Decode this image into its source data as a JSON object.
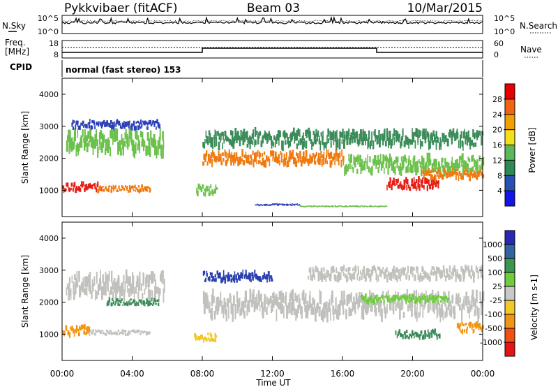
{
  "header": {
    "station": "Pykkvibaer (fitACF)",
    "beam": "Beam 03",
    "date": "10/Mar/2015"
  },
  "params": {
    "nsky_label": "N.Sky",
    "nsky_ticks": [
      "10^5",
      "10^0"
    ],
    "nsearch_label": "N.Search",
    "nsearch_ticks": [
      "10^5",
      "10^0"
    ],
    "freq_label_1": "Freq.",
    "freq_label_2": "[MHz]",
    "freq_ticks": [
      "18",
      "8"
    ],
    "nave_label": "Nave",
    "nave_ticks": [
      "60",
      "0"
    ],
    "cpid_label": "CPID",
    "cpid_text": "normal (fast stereo) 153"
  },
  "chart_data": [
    {
      "type": "heatmap",
      "panel": "power",
      "ylabel": "Slant Range [km]",
      "ylim": [
        180,
        4500
      ],
      "yticks": [
        "1000",
        "2000",
        "3000",
        "4000"
      ],
      "colorbar_label": "Power [dB]",
      "colorbar_ticks": [
        "4",
        "8",
        "12",
        "16",
        "20",
        "24",
        "28"
      ],
      "colorbar_colors": [
        "#1414e6",
        "#2850b4",
        "#2e8a52",
        "#5cb85c",
        "#f2e01a",
        "#f0a000",
        "#f06414",
        "#e60000"
      ],
      "colors": {
        "weak": "#2a3fb8",
        "mid_low": "#3c8c5a",
        "mid": "#6cc04c",
        "strong": "#f0b400",
        "stronger": "#f07a10",
        "max": "#e61e14"
      },
      "bands": [
        {
          "start": 0.2,
          "end": 5.8,
          "center_km": 2500,
          "width_km": 700,
          "level": "mid"
        },
        {
          "start": 0.0,
          "end": 2.2,
          "center_km": 1100,
          "width_km": 250,
          "level": "max"
        },
        {
          "start": 2.0,
          "end": 5.0,
          "center_km": 1050,
          "width_km": 200,
          "level": "stronger"
        },
        {
          "start": 8.0,
          "end": 16.0,
          "center_km": 2000,
          "width_km": 400,
          "level": "stronger"
        },
        {
          "start": 8.0,
          "end": 24.0,
          "center_km": 2600,
          "width_km": 500,
          "level": "mid_low"
        },
        {
          "start": 16.0,
          "end": 24.0,
          "center_km": 1800,
          "width_km": 500,
          "level": "mid"
        },
        {
          "start": 18.5,
          "end": 21.5,
          "center_km": 1200,
          "width_km": 350,
          "level": "max"
        },
        {
          "start": 20.5,
          "end": 24.0,
          "center_km": 1500,
          "width_km": 300,
          "level": "stronger"
        },
        {
          "start": 0.5,
          "end": 5.5,
          "center_km": 3050,
          "width_km": 250,
          "level": "weak"
        },
        {
          "start": 11.0,
          "end": 13.5,
          "center_km": 550,
          "width_km": 60,
          "level": "weak"
        },
        {
          "start": 13.5,
          "end": 18.5,
          "center_km": 500,
          "width_km": 40,
          "level": "mid"
        },
        {
          "start": 7.6,
          "end": 8.8,
          "center_km": 1000,
          "width_km": 300,
          "level": "mid"
        }
      ]
    },
    {
      "type": "heatmap",
      "panel": "velocity",
      "ylabel": "Slant Range [km]",
      "xlabel": "Time UT",
      "ylim": [
        180,
        4500
      ],
      "yticks": [
        "1000",
        "2000",
        "3000",
        "4000"
      ],
      "xlim": [
        0,
        24
      ],
      "xticks": [
        "00:00",
        "04:00",
        "08:00",
        "12:00",
        "16:00",
        "20:00",
        "00:00"
      ],
      "colorbar_label": "Velocity [m s-1]",
      "colorbar_ticks": [
        "1000",
        "500",
        "100",
        "25",
        "-25",
        "-100",
        "-500",
        "-1000"
      ],
      "colorbar_colors": [
        "#2828b4",
        "#3264a0",
        "#3c9650",
        "#6ecd3c",
        "#c8c8c8",
        "#f0c828",
        "#f09614",
        "#f05014",
        "#e61414"
      ],
      "colors": {
        "neg_high": "#2a3fb0",
        "neg_mid": "#3c8c5a",
        "neg_low": "#6ecd3c",
        "zero": "#c0c0bc",
        "pos_low": "#f0c828",
        "pos_mid": "#f09614",
        "pos_high": "#e61e14"
      },
      "bands": [
        {
          "start": 0.2,
          "end": 5.8,
          "center_km": 2500,
          "width_km": 700,
          "level": "zero"
        },
        {
          "start": 0.0,
          "end": 1.5,
          "center_km": 1100,
          "width_km": 300,
          "level": "pos_mid"
        },
        {
          "start": 1.5,
          "end": 5.0,
          "center_km": 1050,
          "width_km": 150,
          "level": "zero"
        },
        {
          "start": 2.5,
          "end": 5.5,
          "center_km": 2000,
          "width_km": 200,
          "level": "neg_mid"
        },
        {
          "start": 7.5,
          "end": 8.8,
          "center_km": 900,
          "width_km": 250,
          "level": "pos_low"
        },
        {
          "start": 8.0,
          "end": 12.0,
          "center_km": 2800,
          "width_km": 300,
          "level": "neg_high"
        },
        {
          "start": 8.0,
          "end": 24.0,
          "center_km": 1900,
          "width_km": 700,
          "level": "zero"
        },
        {
          "start": 14.0,
          "end": 24.0,
          "center_km": 2900,
          "width_km": 400,
          "level": "zero"
        },
        {
          "start": 17.0,
          "end": 22.0,
          "center_km": 2100,
          "width_km": 250,
          "level": "neg_low"
        },
        {
          "start": 19.0,
          "end": 21.5,
          "center_km": 1000,
          "width_km": 250,
          "level": "neg_mid"
        },
        {
          "start": 22.5,
          "end": 24.0,
          "center_km": 1200,
          "width_km": 300,
          "level": "pos_mid"
        }
      ]
    }
  ]
}
